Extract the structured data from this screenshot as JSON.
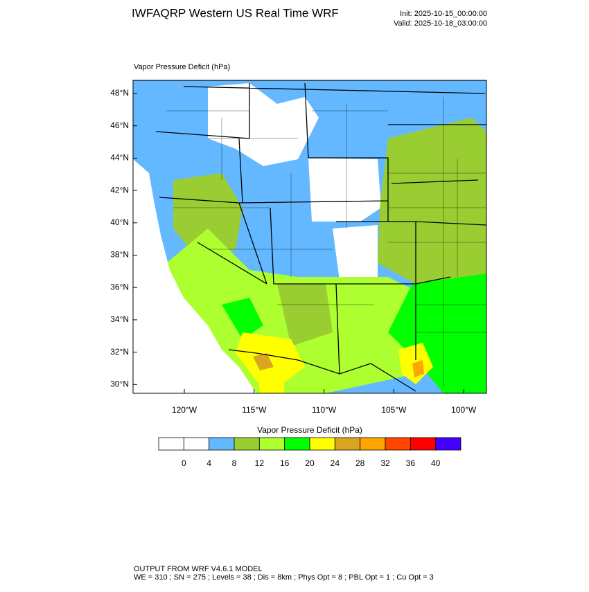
{
  "header": {
    "title": "IWFAQRP Western US Real Time WRF",
    "init": "Init: 2025-10-15_00:00:00",
    "valid": "Valid: 2025-10-18_03:00:00"
  },
  "map": {
    "label": "Vapor Pressure Deficit   (hPa)",
    "lat_labels": [
      "48°N",
      "46°N",
      "44°N",
      "42°N",
      "40°N",
      "38°N",
      "36°N",
      "34°N",
      "32°N",
      "30°N"
    ],
    "lon_labels": [
      "120°W",
      "115°W",
      "110°W",
      "105°W",
      "100°W"
    ]
  },
  "colorbar": {
    "title": "Vapor Pressure Deficit  (hPa)",
    "colors": [
      "#ffffff",
      "#ffffff",
      "#63b8ff",
      "#9acd32",
      "#adff2f",
      "#00ff00",
      "#ffff00",
      "#daa520",
      "#ffa500",
      "#ff4500",
      "#ff0000",
      "#4400ff"
    ],
    "labels": [
      "0",
      "4",
      "8",
      "12",
      "16",
      "20",
      "24",
      "28",
      "32",
      "36",
      "40"
    ]
  },
  "footer": {
    "line1": "OUTPUT FROM WRF V4.6.1 MODEL",
    "line2": "WE = 310 ; SN = 275 ; Levels = 38 ; Dis = 8km ; Phys Opt = 8 ; PBL Opt = 1 ; Cu Opt = 3"
  }
}
